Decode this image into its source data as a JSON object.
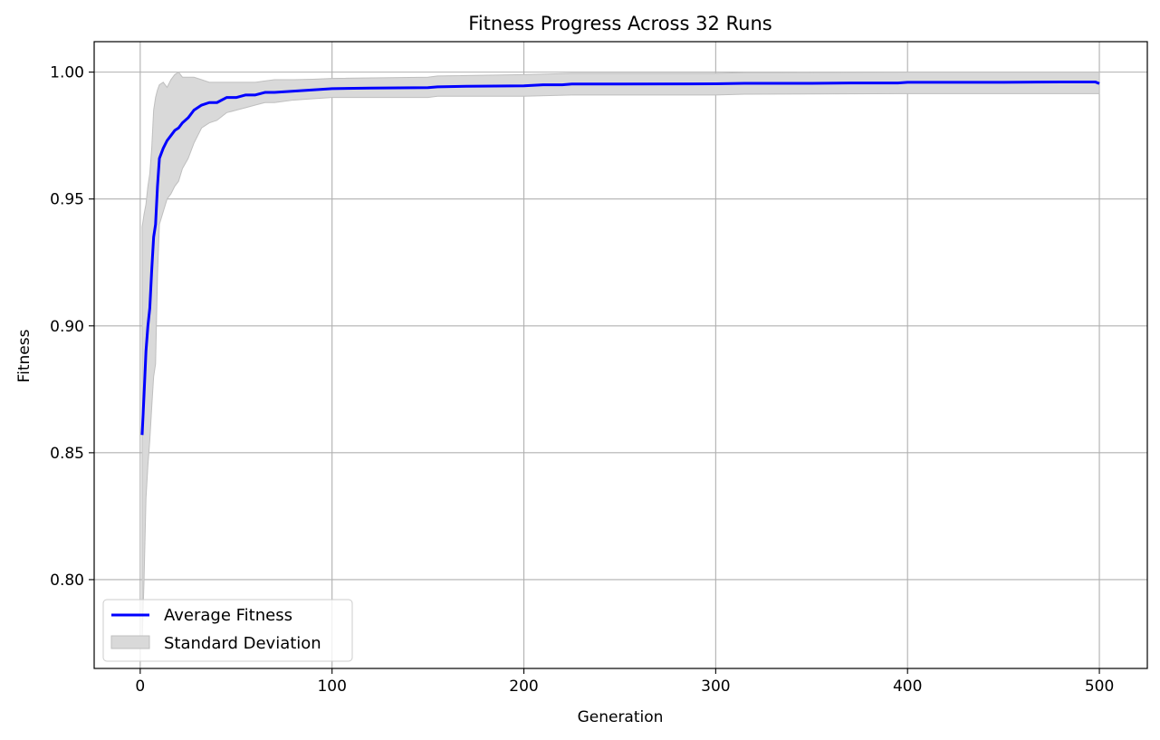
{
  "chart_data": {
    "type": "line",
    "title": "Fitness Progress Across 32 Runs",
    "xlabel": "Generation",
    "ylabel": "Fitness",
    "xlim": [
      -24,
      525
    ],
    "ylim": [
      0.765,
      1.012
    ],
    "xticks": [
      0,
      100,
      200,
      300,
      400,
      500
    ],
    "yticks": [
      0.8,
      0.85,
      0.9,
      0.95,
      1.0
    ],
    "ytick_labels": [
      "0.80",
      "0.85",
      "0.90",
      "0.95",
      "1.00"
    ],
    "grid": true,
    "legend_position": "lower-left",
    "series": [
      {
        "name": "Average Fitness",
        "color": "#0000ff",
        "points": [
          [
            1,
            0.857
          ],
          [
            2,
            0.873
          ],
          [
            3,
            0.89
          ],
          [
            4,
            0.9
          ],
          [
            5,
            0.907
          ],
          [
            6,
            0.922
          ],
          [
            7,
            0.935
          ],
          [
            8,
            0.94
          ],
          [
            9,
            0.955
          ],
          [
            10,
            0.966
          ],
          [
            12,
            0.97
          ],
          [
            14,
            0.973
          ],
          [
            16,
            0.975
          ],
          [
            18,
            0.977
          ],
          [
            20,
            0.978
          ],
          [
            22,
            0.98
          ],
          [
            25,
            0.982
          ],
          [
            28,
            0.985
          ],
          [
            32,
            0.987
          ],
          [
            36,
            0.988
          ],
          [
            40,
            0.988
          ],
          [
            45,
            0.99
          ],
          [
            50,
            0.99
          ],
          [
            55,
            0.991
          ],
          [
            60,
            0.991
          ],
          [
            65,
            0.992
          ],
          [
            70,
            0.992
          ],
          [
            80,
            0.9925
          ],
          [
            90,
            0.993
          ],
          [
            100,
            0.9935
          ],
          [
            120,
            0.9937
          ],
          [
            150,
            0.9939
          ],
          [
            155,
            0.9942
          ],
          [
            170,
            0.9944
          ],
          [
            200,
            0.9946
          ],
          [
            210,
            0.995
          ],
          [
            220,
            0.995
          ],
          [
            225,
            0.9953
          ],
          [
            250,
            0.9953
          ],
          [
            300,
            0.9954
          ],
          [
            315,
            0.9956
          ],
          [
            350,
            0.9956
          ],
          [
            370,
            0.9957
          ],
          [
            395,
            0.9957
          ],
          [
            400,
            0.996
          ],
          [
            450,
            0.996
          ],
          [
            480,
            0.9961
          ],
          [
            498,
            0.9961
          ],
          [
            500,
            0.9955
          ]
        ]
      }
    ],
    "band": {
      "name": "Standard Deviation",
      "color": "#d9d9d9",
      "edge_color": "#bfbfbf",
      "points": [
        [
          1,
          0.775,
          0.939
        ],
        [
          2,
          0.8,
          0.944
        ],
        [
          3,
          0.832,
          0.948
        ],
        [
          4,
          0.845,
          0.955
        ],
        [
          5,
          0.855,
          0.96
        ],
        [
          6,
          0.868,
          0.97
        ],
        [
          7,
          0.88,
          0.985
        ],
        [
          8,
          0.885,
          0.99
        ],
        [
          9,
          0.92,
          0.993
        ],
        [
          10,
          0.94,
          0.995
        ],
        [
          12,
          0.945,
          0.996
        ],
        [
          14,
          0.95,
          0.994
        ],
        [
          16,
          0.952,
          0.997
        ],
        [
          18,
          0.955,
          0.999
        ],
        [
          20,
          0.957,
          1.0
        ],
        [
          22,
          0.962,
          0.998
        ],
        [
          25,
          0.966,
          0.998
        ],
        [
          28,
          0.972,
          0.998
        ],
        [
          32,
          0.978,
          0.997
        ],
        [
          36,
          0.98,
          0.996
        ],
        [
          40,
          0.981,
          0.996
        ],
        [
          45,
          0.984,
          0.996
        ],
        [
          50,
          0.985,
          0.996
        ],
        [
          55,
          0.986,
          0.996
        ],
        [
          60,
          0.987,
          0.996
        ],
        [
          65,
          0.988,
          0.9965
        ],
        [
          70,
          0.988,
          0.997
        ],
        [
          80,
          0.989,
          0.997
        ],
        [
          90,
          0.9895,
          0.9972
        ],
        [
          100,
          0.99,
          0.9975
        ],
        [
          150,
          0.99,
          0.998
        ],
        [
          155,
          0.9905,
          0.9985
        ],
        [
          200,
          0.9905,
          0.999
        ],
        [
          225,
          0.991,
          0.9995
        ],
        [
          300,
          0.991,
          0.9995
        ],
        [
          315,
          0.9913,
          0.9998
        ],
        [
          400,
          0.9915,
          1.0
        ],
        [
          500,
          0.9915,
          1.0
        ]
      ]
    }
  }
}
